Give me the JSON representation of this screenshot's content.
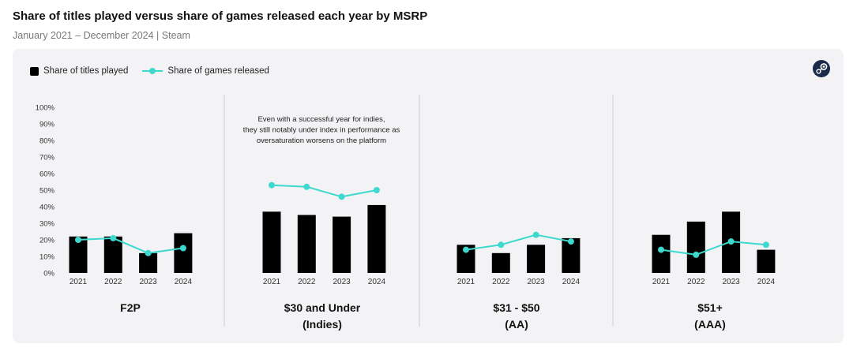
{
  "header": {
    "title": "Share of titles played versus share of games released each year by MSRP",
    "subtitle": "January 2021 – December 2024 | Steam"
  },
  "colors": {
    "bar": "#000000",
    "line": "#3dd9cf",
    "divider": "#cfcfd4"
  },
  "icons": {
    "brand": "steam-logo-icon"
  },
  "chart_data": {
    "type": "bar",
    "legend": {
      "placement": "top-left",
      "entries": [
        "Share of titles played",
        "Share of games released"
      ]
    },
    "y_ticks": [
      "0%",
      "10%",
      "20%",
      "30%",
      "40%",
      "50%",
      "60%",
      "70%",
      "80%",
      "90%",
      "100%"
    ],
    "ylim": [
      0,
      100
    ],
    "grid": false,
    "categories": [
      "2021",
      "2022",
      "2023",
      "2024"
    ],
    "series_names": [
      "Share of titles played",
      "Share of games released"
    ],
    "groups": [
      {
        "label": [
          "F2P"
        ],
        "played": [
          22,
          22,
          12,
          24
        ],
        "released": [
          20,
          21,
          12,
          15
        ]
      },
      {
        "label": [
          "$30 and Under",
          "(Indies)"
        ],
        "played": [
          37,
          35,
          34,
          41
        ],
        "released": [
          53,
          52,
          46,
          50
        ]
      },
      {
        "label": [
          "$31 - $50",
          "(AA)"
        ],
        "played": [
          17,
          12,
          17,
          21
        ],
        "released": [
          14,
          17,
          23,
          19
        ]
      },
      {
        "label": [
          "$51+",
          "(AAA)"
        ],
        "played": [
          23,
          31,
          37,
          14
        ],
        "released": [
          14,
          11,
          19,
          17
        ]
      }
    ],
    "annotation": {
      "lines": [
        "Even with a successful year for indies,",
        "they still notably under index in performance as",
        "oversaturation worsens on the platform"
      ]
    }
  }
}
